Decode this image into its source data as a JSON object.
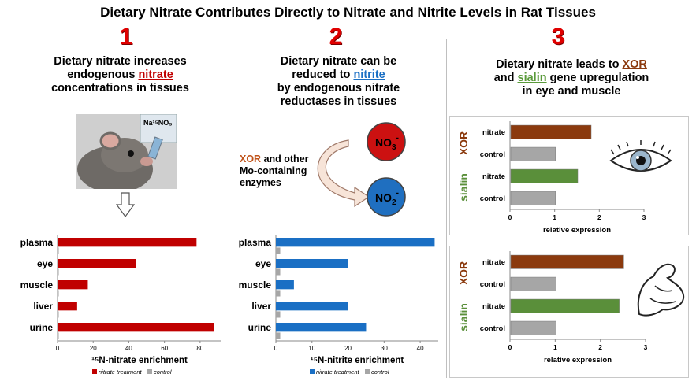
{
  "title": "Dietary Nitrate Contributes Directly to Nitrate and Nitrite Levels in Rat Tissues",
  "panels": {
    "p1": {
      "number": "1",
      "cap_line1": "Dietary nitrate increases",
      "cap_line2a": "endogenous ",
      "cap_line2b": "nitrate",
      "cap_line3": "concentrations in tissues",
      "bottle_label": "Na¹⁵NO₃"
    },
    "p2": {
      "number": "2",
      "cap_line1": "Dietary nitrate can be",
      "cap_line2a": "reduced to ",
      "cap_line2b": "nitrite",
      "cap_line3": "by endogenous nitrate",
      "cap_line4": "reductases in tissues",
      "enzyme_a": "XOR",
      "enzyme_b": " and other",
      "enzyme_line2": "Mo-containing",
      "enzyme_line3": "enzymes",
      "no3": "NO",
      "no3_sub": "3",
      "no2": "NO",
      "no2_sub": "2",
      "minus": "-"
    },
    "p3": {
      "number": "3",
      "cap_line1a": "Dietary nitrate leads to ",
      "cap_line1b": "XOR",
      "cap_line2a": "and ",
      "cap_line2b": "sialin",
      "cap_line2c": " gene upregulation",
      "cap_line3": "in eye and muscle"
    }
  },
  "colors": {
    "red": "#c00000",
    "blue": "#1a6fc4",
    "brown": "#8b3a0e",
    "green": "#5a8f3a",
    "gray": "#a6a6a6"
  },
  "chart_data": [
    {
      "type": "bar",
      "orientation": "horizontal",
      "categories": [
        "plasma",
        "eye",
        "muscle",
        "liver",
        "urine"
      ],
      "series": [
        {
          "name": "nitrate treatment",
          "values": [
            78,
            44,
            17,
            11,
            88
          ],
          "color": "#c00000"
        },
        {
          "name": "control",
          "values": [
            0.5,
            0.5,
            0.5,
            0.5,
            0.5
          ],
          "color": "#a6a6a6"
        }
      ],
      "xlabel": "¹⁵N-nitrate enrichment",
      "xticks": [
        0,
        20,
        40,
        60,
        80
      ],
      "xlim": [
        0,
        92
      ],
      "legend": "bottom"
    },
    {
      "type": "bar",
      "orientation": "horizontal",
      "categories": [
        "plasma",
        "eye",
        "muscle",
        "liver",
        "urine"
      ],
      "series": [
        {
          "name": "nitrate treatment",
          "values": [
            44,
            20,
            5,
            20,
            25
          ],
          "color": "#1a6fc4"
        },
        {
          "name": "control",
          "values": [
            1.2,
            1.2,
            1.2,
            1.2,
            1.2
          ],
          "color": "#a6a6a6"
        }
      ],
      "xlabel": "¹⁵N-nitrite enrichment",
      "xticks": [
        0,
        10,
        20,
        30,
        40
      ],
      "xlim": [
        0,
        45
      ],
      "legend": "bottom"
    },
    {
      "type": "bar",
      "orientation": "horizontal",
      "tissue": "eye",
      "groups": [
        "XOR",
        "sialin"
      ],
      "categories": [
        "nitrate",
        "control",
        "nitrate",
        "control"
      ],
      "values": [
        1.8,
        1.0,
        1.5,
        1.0
      ],
      "bar_colors": [
        "#8b3a0e",
        "#a6a6a6",
        "#5a8f3a",
        "#a6a6a6"
      ],
      "xlabel": "relative expression",
      "xticks": [
        0,
        1,
        2,
        3
      ],
      "xlim": [
        0,
        3
      ]
    },
    {
      "type": "bar",
      "orientation": "horizontal",
      "tissue": "muscle",
      "groups": [
        "XOR",
        "sialin"
      ],
      "categories": [
        "nitrate",
        "control",
        "nitrate",
        "control"
      ],
      "values": [
        2.5,
        1.0,
        2.4,
        1.0
      ],
      "bar_colors": [
        "#8b3a0e",
        "#a6a6a6",
        "#5a8f3a",
        "#a6a6a6"
      ],
      "xlabel": "relative expression",
      "xticks": [
        0,
        1,
        2,
        3
      ],
      "xlim": [
        0,
        3
      ]
    }
  ]
}
